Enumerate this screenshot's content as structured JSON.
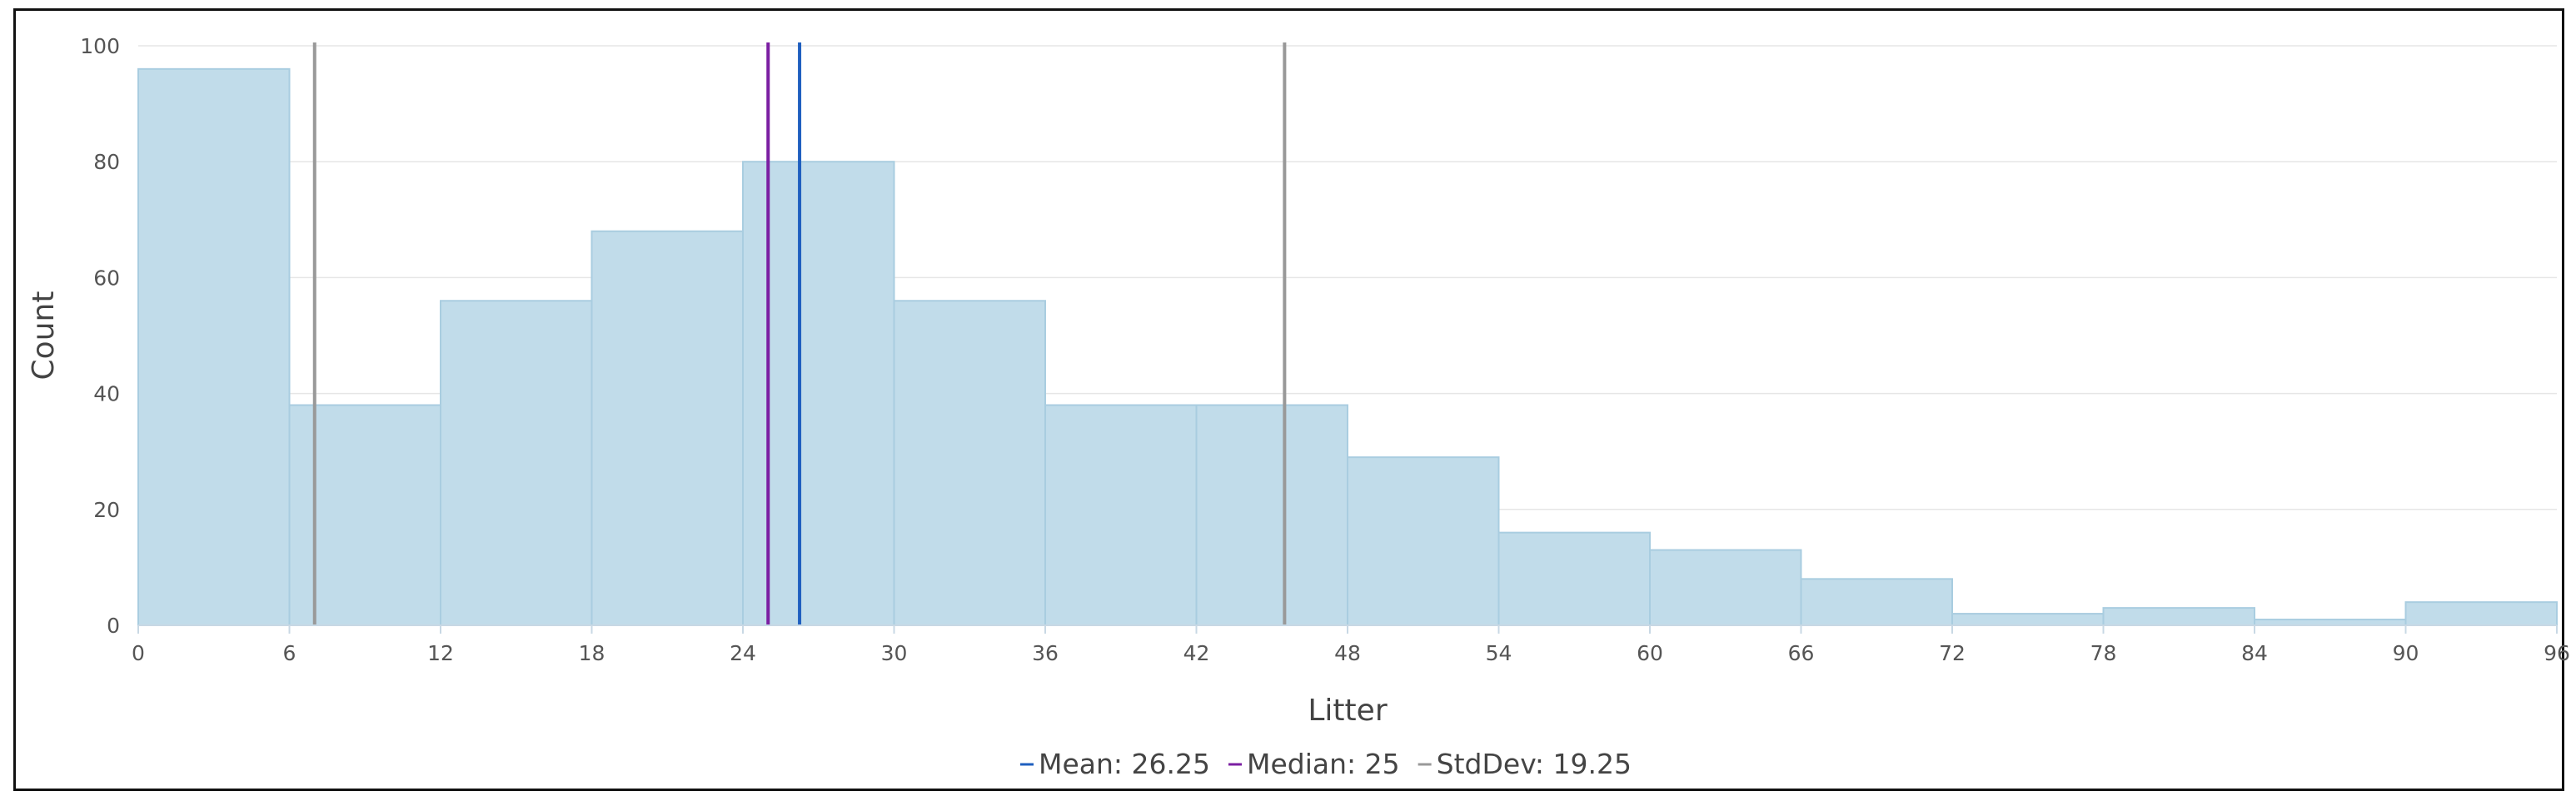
{
  "chart_data": {
    "type": "bar",
    "xlabel": "Litter",
    "ylabel": "Count",
    "xlim": [
      0,
      96
    ],
    "ylim": [
      0,
      100
    ],
    "x_ticks": [
      0,
      6,
      12,
      18,
      24,
      30,
      36,
      42,
      48,
      54,
      60,
      66,
      72,
      78,
      84,
      90,
      96
    ],
    "y_ticks": [
      0,
      20,
      40,
      60,
      80,
      100
    ],
    "bin_width": 6,
    "bins": [
      {
        "start": 0,
        "end": 6,
        "count": 96
      },
      {
        "start": 6,
        "end": 12,
        "count": 38
      },
      {
        "start": 12,
        "end": 18,
        "count": 56
      },
      {
        "start": 18,
        "end": 24,
        "count": 68
      },
      {
        "start": 24,
        "end": 30,
        "count": 80
      },
      {
        "start": 30,
        "end": 36,
        "count": 56
      },
      {
        "start": 36,
        "end": 42,
        "count": 38
      },
      {
        "start": 42,
        "end": 48,
        "count": 38
      },
      {
        "start": 48,
        "end": 54,
        "count": 29
      },
      {
        "start": 54,
        "end": 60,
        "count": 16
      },
      {
        "start": 60,
        "end": 66,
        "count": 13
      },
      {
        "start": 66,
        "end": 72,
        "count": 8
      },
      {
        "start": 72,
        "end": 78,
        "count": 2
      },
      {
        "start": 78,
        "end": 84,
        "count": 3
      },
      {
        "start": 84,
        "end": 90,
        "count": 1
      },
      {
        "start": 90,
        "end": 96,
        "count": 4
      }
    ],
    "reference_lines": [
      {
        "label": "Mean: 26.25",
        "x": 26.25,
        "color": "#1f5fbf"
      },
      {
        "label": "Median: 25",
        "x": 25,
        "color": "#7b1fa2"
      },
      {
        "label": "StdDev: 19.25",
        "x_values": [
          7,
          45.5
        ],
        "color": "#999999"
      }
    ],
    "bar_color": "#c1dcea",
    "bar_stroke": "#a9cde0",
    "grid": true,
    "legend_position": "bottom-center"
  }
}
